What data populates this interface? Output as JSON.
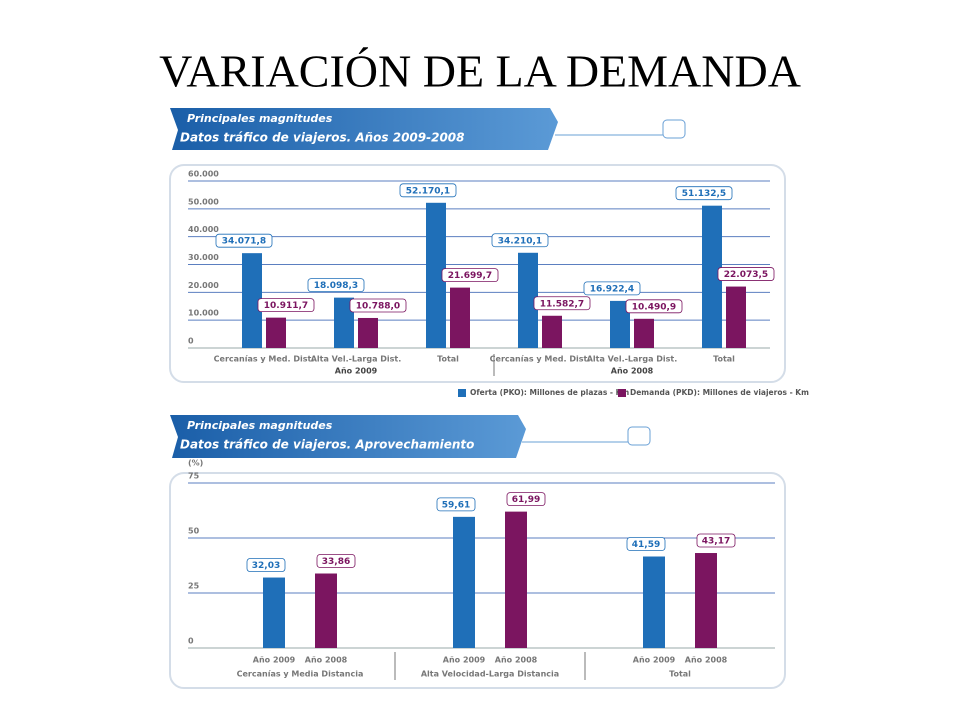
{
  "title": "VARIACIÓN DE LA DEMANDA",
  "chart_data": [
    {
      "type": "bar",
      "kicker": "Principales magnitudes",
      "title": "Datos tráfico de viajeros. Años 2009-2008",
      "categories": [
        "Cercanías y Med. Dist.",
        "Alta Vel.-Larga Dist.",
        "Total",
        "Cercanías y Med. Dist.",
        "Alta Vel.-Larga Dist.",
        "Total"
      ],
      "groups": [
        "Año 2009",
        "Año 2008"
      ],
      "series": [
        {
          "name": "Oferta (PKO): Millones de plazas - Km",
          "color": "#1f6fb8",
          "values": [
            34071.8,
            18098.3,
            52170.1,
            34210.1,
            16922.4,
            51132.5
          ],
          "value_labels": [
            "34.071,8",
            "18.098,3",
            "52.170,1",
            "34.210,1",
            "16.922,4",
            "51.132,5"
          ]
        },
        {
          "name": "Demanda (PKD): Millones de viajeros - Km",
          "color": "#7b1560",
          "values": [
            10911.7,
            10788.0,
            21699.7,
            11582.7,
            10490.9,
            22073.5
          ],
          "value_labels": [
            "10.911,7",
            "10.788,0",
            "21.699,7",
            "11.582,7",
            "10.490,9",
            "22.073,5"
          ]
        }
      ],
      "ylim": [
        0,
        60000
      ],
      "yticks": [
        0,
        {
          "value": 10000,
          "label": "10.000"
        },
        {
          "value": 20000,
          "label": "20.000"
        },
        {
          "value": 30000,
          "label": "30.000"
        },
        {
          "value": 40000,
          "label": "40.000"
        },
        {
          "value": 50000,
          "label": "50.000"
        },
        {
          "value": 60000,
          "label": "60.000"
        }
      ],
      "grid": true,
      "legend": "bottom-right"
    },
    {
      "type": "bar",
      "kicker": "Principales magnitudes",
      "title": "Datos tráfico de viajeros. Aprovechamiento",
      "ylabel": "(%)",
      "categories": [
        "Cercanías y Media Distancia",
        "Alta Velocidad-Larga Distancia",
        "Total"
      ],
      "series": [
        {
          "name": "Año 2009",
          "color": "#1f6fb8",
          "values": [
            32.03,
            59.61,
            41.59
          ],
          "value_labels": [
            "32,03",
            "59,61",
            "41,59"
          ]
        },
        {
          "name": "Año 2008",
          "color": "#7b1560",
          "values": [
            33.86,
            61.99,
            43.17
          ],
          "value_labels": [
            "33,86",
            "61,99",
            "43,17"
          ]
        }
      ],
      "ylim": [
        0,
        75
      ],
      "yticks": [
        0,
        25,
        50,
        75
      ],
      "grid": true
    }
  ]
}
